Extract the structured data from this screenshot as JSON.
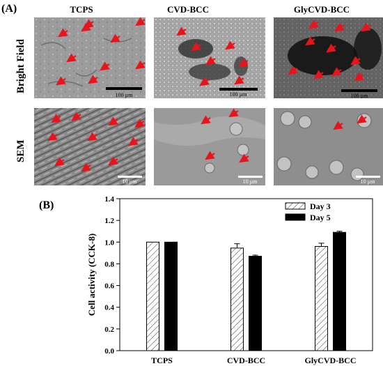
{
  "panel_a": {
    "label": "(A)",
    "columns": [
      "TCPS",
      "CVD-BCC",
      "GlyCVD-BCC"
    ],
    "rows": [
      "Bright Field",
      "SEM"
    ],
    "scale_bars": {
      "bright_field": "100 µm",
      "sem": "10 µm"
    }
  },
  "panel_b": {
    "label": "(B)"
  },
  "colors": {
    "arrow": "#e8141b",
    "bar_day5": "#000000"
  },
  "chart_data": {
    "type": "bar",
    "categories": [
      "TCPS",
      "CVD-BCC",
      "GlyCVD-BCC"
    ],
    "series": [
      {
        "name": "Day 3",
        "values": [
          1.0,
          0.945,
          0.96
        ],
        "errors": [
          0.0,
          0.04,
          0.03
        ],
        "pattern": "hatched"
      },
      {
        "name": "Day 5",
        "values": [
          1.0,
          0.87,
          1.09
        ],
        "errors": [
          0.0,
          0.01,
          0.01
        ],
        "pattern": "solid"
      }
    ],
    "ylabel": "Cell activity (CCK-8)",
    "xlabel": "",
    "ylim": [
      0.0,
      1.4
    ],
    "yticks": [
      "0.0",
      "0.2",
      "0.4",
      "0.6",
      "0.8",
      "1.0",
      "1.2",
      "1.4"
    ],
    "legend_placement": "top-right",
    "grid": false
  }
}
